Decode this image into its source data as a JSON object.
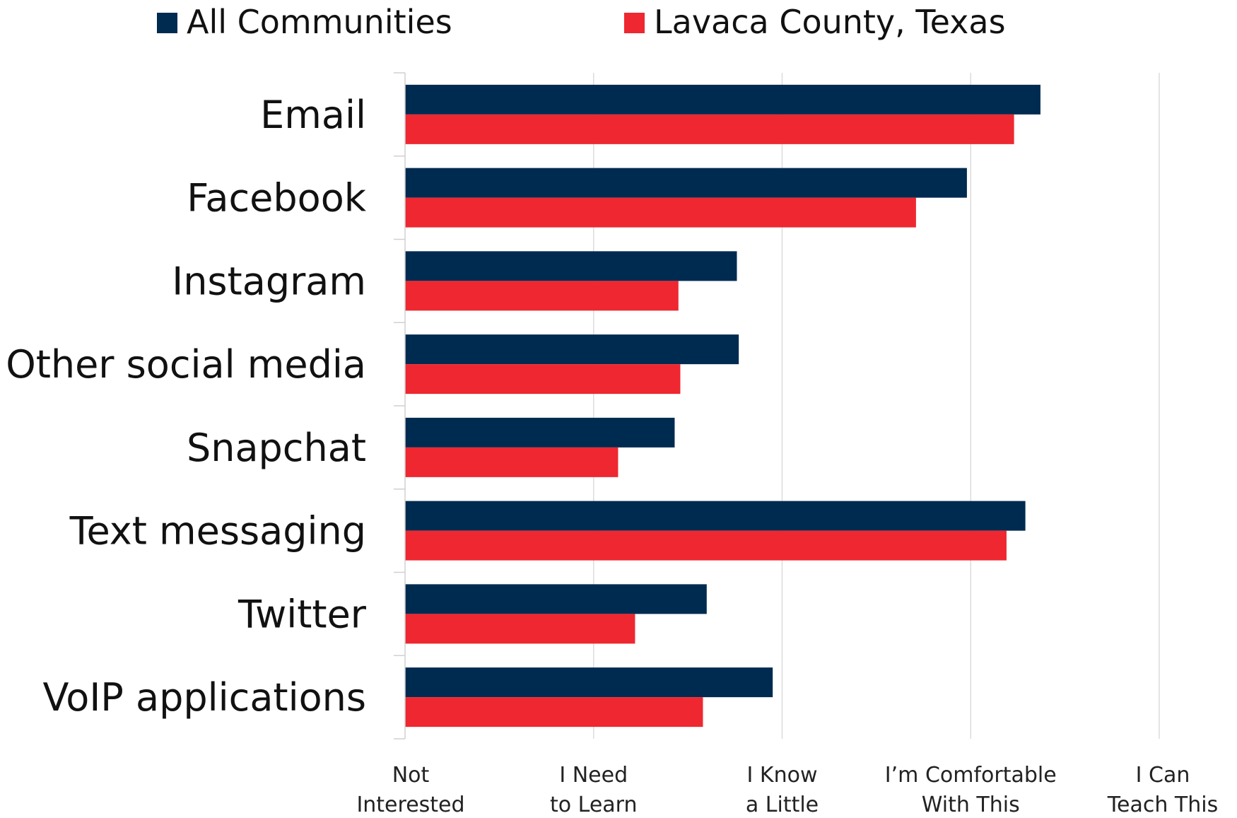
{
  "chart_data": {
    "type": "bar",
    "orientation": "horizontal",
    "categories": [
      "Email",
      "Facebook",
      "Instagram",
      "Other social media",
      "Snapchat",
      "Text messaging",
      "Twitter",
      "VoIP applications"
    ],
    "series": [
      {
        "name": "All Communities",
        "color": "#002b51",
        "values": [
          4.37,
          3.98,
          2.76,
          2.77,
          2.43,
          4.29,
          2.6,
          2.95
        ]
      },
      {
        "name": "Lavaca County, Texas",
        "color": "#ee2730",
        "values": [
          4.23,
          3.71,
          2.45,
          2.46,
          2.13,
          4.19,
          2.22,
          2.58
        ]
      }
    ],
    "xlim": [
      1,
      5
    ],
    "x_ticks": [
      1,
      2,
      3,
      4,
      5
    ],
    "x_tick_labels": [
      [
        "Not",
        "Interested"
      ],
      [
        "I Need",
        "to Learn"
      ],
      [
        "I Know",
        "a Little"
      ],
      [
        "I’m Comfortable",
        "With This"
      ],
      [
        "I Can",
        "Teach This"
      ]
    ],
    "grid": true,
    "legend_position": "top"
  }
}
